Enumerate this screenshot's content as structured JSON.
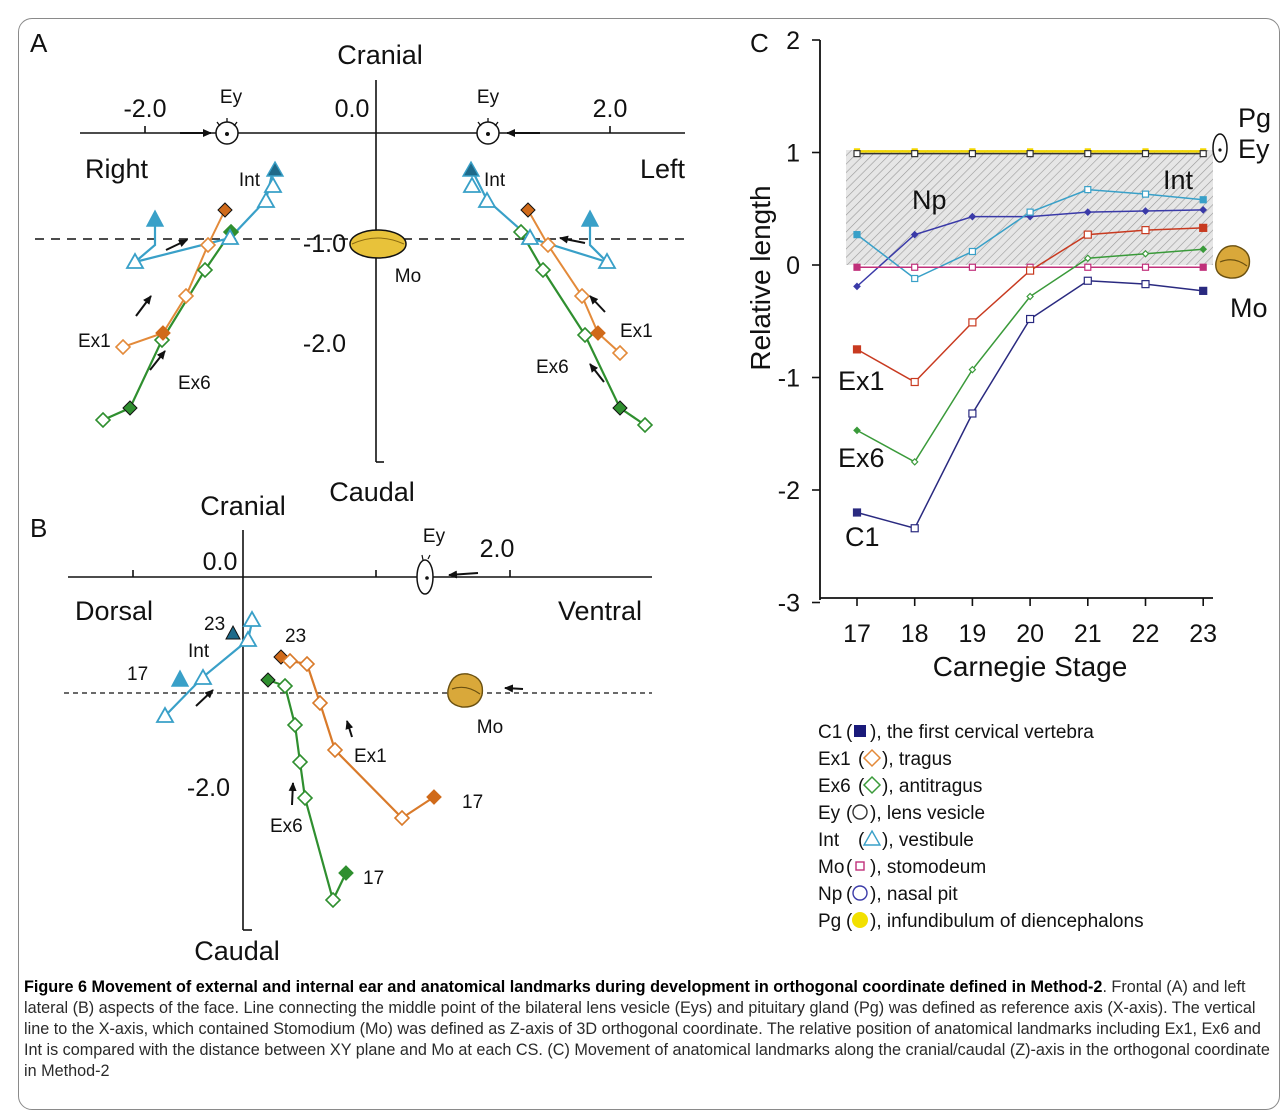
{
  "panel_a": {
    "letter": "A",
    "cranial": "Cranial",
    "caudal": "Caudal",
    "right": "Right",
    "left": "Left",
    "tick_neg2": "-2.0",
    "tick_0": "0.0",
    "tick_pos2": "2.0",
    "tick_neg1": "-1.0",
    "tick_neg2v": "-2.0",
    "ey_left": "Ey",
    "ey_right": "Ey",
    "mo": "Mo",
    "int_left": "Int",
    "int_right": "Int",
    "ex1_left": "Ex1",
    "ex1_right": "Ex1",
    "ex6_left": "Ex6",
    "ex6_right": "Ex6"
  },
  "panel_b": {
    "letter": "B",
    "cranial": "Cranial",
    "caudal": "Caudal",
    "dorsal": "Dorsal",
    "ventral": "Ventral",
    "tick_0": "0.0",
    "tick_pos2": "2.0",
    "tick_neg2": "-2.0",
    "ey": "Ey",
    "mo": "Mo",
    "int": "Int",
    "ex1": "Ex1",
    "ex6": "Ex6",
    "n23a": "23",
    "n23b": "23",
    "n17a": "17",
    "n17b": "17",
    "n17c": "17"
  },
  "panel_c": {
    "letter": "C",
    "chart_data": {
      "type": "line",
      "title": "",
      "xlabel": "Carnegie Stage",
      "ylabel": "Relative length",
      "x": [
        17,
        18,
        19,
        20,
        21,
        22,
        23
      ],
      "ylim": [
        -3,
        2
      ],
      "yticks": [
        "2",
        "1",
        "0",
        "-1",
        "-2",
        "-3"
      ],
      "xticks": [
        "17",
        "18",
        "19",
        "20",
        "21",
        "22",
        "23"
      ],
      "series": [
        {
          "name": "Pg",
          "color": "#f2d600",
          "values": [
            1.01,
            1.01,
            1.01,
            1.01,
            1.01,
            1.01,
            1.01
          ]
        },
        {
          "name": "Ey",
          "color": "#333333",
          "values": [
            0.99,
            0.99,
            0.99,
            0.99,
            0.99,
            0.99,
            0.99
          ]
        },
        {
          "name": "Np",
          "color": "#3a3aa8",
          "values": [
            -0.19,
            0.27,
            0.43,
            0.43,
            0.47,
            0.48,
            0.49
          ]
        },
        {
          "name": "Int",
          "color": "#39a0c8",
          "values": [
            0.27,
            -0.12,
            0.12,
            0.47,
            0.67,
            0.63,
            0.58
          ]
        },
        {
          "name": "Mo",
          "color": "#c0307a",
          "values": [
            -0.02,
            -0.02,
            -0.02,
            -0.02,
            -0.02,
            -0.02,
            -0.02
          ]
        },
        {
          "name": "Ex1",
          "color": "#c83a20",
          "values": [
            -0.75,
            -1.04,
            -0.51,
            -0.05,
            0.27,
            0.31,
            0.33
          ]
        },
        {
          "name": "Ex6",
          "color": "#3a9a3a",
          "values": [
            -1.47,
            -1.75,
            -0.93,
            -0.28,
            0.06,
            0.1,
            0.14
          ]
        },
        {
          "name": "C1",
          "color": "#2a2a80",
          "values": [
            -2.2,
            -2.34,
            -1.32,
            -0.48,
            -0.14,
            -0.17,
            -0.23
          ]
        }
      ],
      "legend": [
        {
          "name": "C1",
          "desc": "), the first cervical vertebra",
          "mark": "square",
          "color": "#1a1a7a"
        },
        {
          "name": "Ex1",
          "desc": "), tragus",
          "mark": "diamond",
          "color": "#e38a3a"
        },
        {
          "name": "Ex6",
          "desc": "), antitragus",
          "mark": "diamond",
          "color": "#3a9a3a"
        },
        {
          "name": "Ey",
          "desc": "), lens vesicle",
          "mark": "circle",
          "color": "#333333"
        },
        {
          "name": "Int",
          "desc": "), vestibule",
          "mark": "triangle",
          "color": "#39a0c8"
        },
        {
          "name": "Mo",
          "desc": "), stomodeum",
          "mark": "smallsquare",
          "color": "#c0307a"
        },
        {
          "name": "Np",
          "desc": "), nasal pit",
          "mark": "circle",
          "color": "#3a3aa8"
        },
        {
          "name": "Pg",
          "desc": "), infundibulum of diencephalons",
          "mark": "dot",
          "color": "#f2e000"
        }
      ],
      "grid": false,
      "legend_placement": "bottom"
    }
  },
  "caption": {
    "bold": "Figure 6 Movement of external and internal ear and anatomical landmarks during development in orthogonal coordinate defined in Method-2",
    "text": ". Frontal (A) and left lateral (B) aspects of the face. Line connecting the middle point of the bilateral lens vesicle (Eys) and pituitary gland (Pg) was defined as reference axis (X-axis). The vertical line to the X-axis, which contained Stomodium (Mo) was defined as Z-axis of 3D orthogonal coordinate. The relative position of anatomical landmarks including Ex1, Ex6 and Int is compared with the distance between XY plane and Mo at each CS. (C) Movement of anatomical landmarks along the cranial/caudal (Z)-axis in the orthogonal coordinate in Method-2"
  }
}
